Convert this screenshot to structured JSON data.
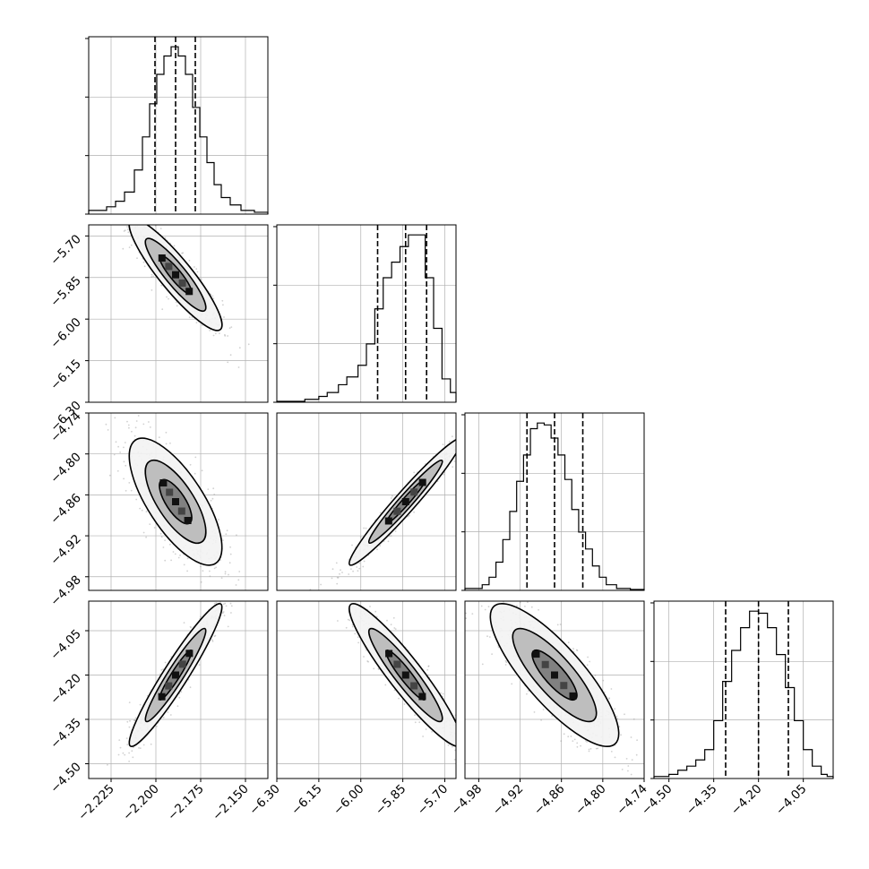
{
  "chart_data": {
    "type": "corner",
    "n_params": 4,
    "axes": [
      {
        "ticks": [
          -2.225,
          -2.2,
          -2.175,
          -2.15
        ],
        "tick_labels": [
          "−2.225",
          "−2.200",
          "−2.175",
          "−2.150"
        ],
        "range": [
          -2.2375,
          -2.1375
        ]
      },
      {
        "ticks": [
          -6.3,
          -6.15,
          -6.0,
          -5.85,
          -5.7
        ],
        "tick_labels": [
          "−6.30",
          "−6.15",
          "−6.00",
          "−5.85",
          "−5.70"
        ],
        "range": [
          -6.3,
          -5.66
        ]
      },
      {
        "ticks": [
          -4.98,
          -4.92,
          -4.86,
          -4.8,
          -4.74
        ],
        "tick_labels": [
          "−4.98",
          "−4.92",
          "−4.86",
          "−4.80",
          "−4.74"
        ],
        "range": [
          -5.0,
          -4.74
        ]
      },
      {
        "ticks": [
          -4.5,
          -4.35,
          -4.2,
          -4.05
        ],
        "tick_labels": [
          "−4.50",
          "−4.35",
          "−4.20",
          "−4.05"
        ],
        "range": [
          -4.55,
          -3.95
        ]
      }
    ],
    "histograms": [
      {
        "param": 0,
        "quantiles": [
          -2.2005,
          -2.189,
          -2.178
        ],
        "bins": [
          {
            "x0": -2.2375,
            "x1": -2.2275,
            "v": 2
          },
          {
            "x0": -2.2275,
            "x1": -2.2225,
            "v": 4
          },
          {
            "x0": -2.2225,
            "x1": -2.2175,
            "v": 7
          },
          {
            "x0": -2.2175,
            "x1": -2.212,
            "v": 12
          },
          {
            "x0": -2.212,
            "x1": -2.2075,
            "v": 24
          },
          {
            "x0": -2.2075,
            "x1": -2.2035,
            "v": 42
          },
          {
            "x0": -2.2035,
            "x1": -2.1995,
            "v": 60
          },
          {
            "x0": -2.1995,
            "x1": -2.1955,
            "v": 76
          },
          {
            "x0": -2.1955,
            "x1": -2.1915,
            "v": 86
          },
          {
            "x0": -2.1915,
            "x1": -2.1875,
            "v": 91
          },
          {
            "x0": -2.1875,
            "x1": -2.1835,
            "v": 86
          },
          {
            "x0": -2.1835,
            "x1": -2.1795,
            "v": 76
          },
          {
            "x0": -2.1795,
            "x1": -2.1755,
            "v": 58
          },
          {
            "x0": -2.1755,
            "x1": -2.1715,
            "v": 42
          },
          {
            "x0": -2.1715,
            "x1": -2.1675,
            "v": 28
          },
          {
            "x0": -2.1675,
            "x1": -2.1635,
            "v": 16
          },
          {
            "x0": -2.1635,
            "x1": -2.1585,
            "v": 9
          },
          {
            "x0": -2.1585,
            "x1": -2.1525,
            "v": 5
          },
          {
            "x0": -2.1525,
            "x1": -2.145,
            "v": 2
          },
          {
            "x0": -2.145,
            "x1": -2.1375,
            "v": 1
          }
        ]
      },
      {
        "param": 1,
        "quantiles": [
          -5.94,
          -5.84,
          -5.765
        ],
        "bins": [
          {
            "x0": -6.3,
            "x1": -6.2,
            "v": 0.5
          },
          {
            "x0": -6.2,
            "x1": -6.15,
            "v": 1.5
          },
          {
            "x0": -6.15,
            "x1": -6.12,
            "v": 3
          },
          {
            "x0": -6.12,
            "x1": -6.08,
            "v": 5
          },
          {
            "x0": -6.08,
            "x1": -6.05,
            "v": 9
          },
          {
            "x0": -6.05,
            "x1": -6.01,
            "v": 13
          },
          {
            "x0": -6.01,
            "x1": -5.98,
            "v": 19
          },
          {
            "x0": -5.98,
            "x1": -5.95,
            "v": 30
          },
          {
            "x0": -5.95,
            "x1": -5.92,
            "v": 48
          },
          {
            "x0": -5.92,
            "x1": -5.89,
            "v": 64
          },
          {
            "x0": -5.89,
            "x1": -5.86,
            "v": 72
          },
          {
            "x0": -5.86,
            "x1": -5.83,
            "v": 80
          },
          {
            "x0": -5.83,
            "x1": -5.8,
            "v": 86
          },
          {
            "x0": -5.8,
            "x1": -5.77,
            "v": 86
          },
          {
            "x0": -5.77,
            "x1": -5.74,
            "v": 64
          },
          {
            "x0": -5.74,
            "x1": -5.71,
            "v": 38
          },
          {
            "x0": -5.71,
            "x1": -5.68,
            "v": 12
          },
          {
            "x0": -5.68,
            "x1": -5.66,
            "v": 5
          }
        ]
      },
      {
        "param": 2,
        "quantiles": [
          -4.91,
          -4.87,
          -4.829
        ],
        "bins": [
          {
            "x0": -5.0,
            "x1": -4.975,
            "v": 1
          },
          {
            "x0": -4.975,
            "x1": -4.965,
            "v": 3
          },
          {
            "x0": -4.965,
            "x1": -4.955,
            "v": 7
          },
          {
            "x0": -4.955,
            "x1": -4.945,
            "v": 15
          },
          {
            "x0": -4.945,
            "x1": -4.935,
            "v": 27
          },
          {
            "x0": -4.935,
            "x1": -4.925,
            "v": 42
          },
          {
            "x0": -4.925,
            "x1": -4.915,
            "v": 58
          },
          {
            "x0": -4.915,
            "x1": -4.905,
            "v": 72
          },
          {
            "x0": -4.905,
            "x1": -4.895,
            "v": 86
          },
          {
            "x0": -4.895,
            "x1": -4.885,
            "v": 89
          },
          {
            "x0": -4.885,
            "x1": -4.875,
            "v": 88
          },
          {
            "x0": -4.875,
            "x1": -4.865,
            "v": 81
          },
          {
            "x0": -4.865,
            "x1": -4.855,
            "v": 72
          },
          {
            "x0": -4.855,
            "x1": -4.845,
            "v": 59
          },
          {
            "x0": -4.845,
            "x1": -4.835,
            "v": 43
          },
          {
            "x0": -4.835,
            "x1": -4.825,
            "v": 31
          },
          {
            "x0": -4.825,
            "x1": -4.815,
            "v": 22
          },
          {
            "x0": -4.815,
            "x1": -4.805,
            "v": 13
          },
          {
            "x0": -4.805,
            "x1": -4.795,
            "v": 7
          },
          {
            "x0": -4.795,
            "x1": -4.78,
            "v": 3
          },
          {
            "x0": -4.78,
            "x1": -4.76,
            "v": 1
          },
          {
            "x0": -4.76,
            "x1": -4.74,
            "v": 0.5
          }
        ]
      },
      {
        "param": 3,
        "quantiles": [
          -4.31,
          -4.2,
          -4.1
        ],
        "bins": [
          {
            "x0": -4.55,
            "x1": -4.5,
            "v": 1
          },
          {
            "x0": -4.5,
            "x1": -4.47,
            "v": 2
          },
          {
            "x0": -4.47,
            "x1": -4.44,
            "v": 4
          },
          {
            "x0": -4.44,
            "x1": -4.41,
            "v": 6
          },
          {
            "x0": -4.41,
            "x1": -4.38,
            "v": 9
          },
          {
            "x0": -4.38,
            "x1": -4.35,
            "v": 14
          },
          {
            "x0": -4.35,
            "x1": -4.32,
            "v": 28
          },
          {
            "x0": -4.32,
            "x1": -4.29,
            "v": 47
          },
          {
            "x0": -4.29,
            "x1": -4.26,
            "v": 62
          },
          {
            "x0": -4.26,
            "x1": -4.23,
            "v": 73
          },
          {
            "x0": -4.23,
            "x1": -4.2,
            "v": 81
          },
          {
            "x0": -4.2,
            "x1": -4.17,
            "v": 80
          },
          {
            "x0": -4.17,
            "x1": -4.14,
            "v": 73
          },
          {
            "x0": -4.14,
            "x1": -4.11,
            "v": 60
          },
          {
            "x0": -4.11,
            "x1": -4.08,
            "v": 44
          },
          {
            "x0": -4.08,
            "x1": -4.05,
            "v": 28
          },
          {
            "x0": -4.05,
            "x1": -4.02,
            "v": 14
          },
          {
            "x0": -4.02,
            "x1": -3.99,
            "v": 6
          },
          {
            "x0": -3.99,
            "x1": -3.97,
            "v": 2
          },
          {
            "x0": -3.97,
            "x1": -3.95,
            "v": 1
          }
        ]
      }
    ],
    "pairs": [
      {
        "x": 0,
        "y": 1,
        "correlation": -0.9
      },
      {
        "x": 0,
        "y": 2,
        "correlation": -0.72
      },
      {
        "x": 1,
        "y": 2,
        "correlation": 0.97
      },
      {
        "x": 0,
        "y": 3,
        "correlation": 0.95
      },
      {
        "x": 1,
        "y": 3,
        "correlation": -0.93
      },
      {
        "x": 2,
        "y": 3,
        "correlation": -0.82
      }
    ],
    "grid": true,
    "colors": {
      "line": "#000000",
      "points": "#9a9a9a",
      "grid": "#b0b0b0"
    }
  }
}
